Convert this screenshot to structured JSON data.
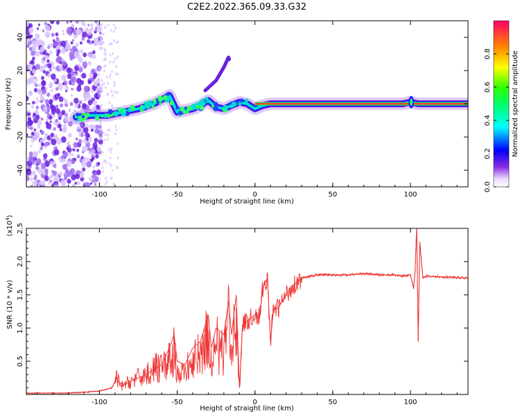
{
  "title": "C2E2.2022.365.09.33.G32",
  "chart_data": [
    {
      "type": "heatmap",
      "xlabel": "Height of straight line (km)",
      "ylabel": "Frequency (Hz)",
      "xlim": [
        -147,
        137
      ],
      "ylim": [
        -50,
        50
      ],
      "xticks": [
        -100,
        -50,
        0,
        50,
        100
      ],
      "yticks": [
        -40,
        -20,
        0,
        20,
        40
      ],
      "colorbar": {
        "label": "Normalized spectral amplitude",
        "range": [
          0,
          1
        ],
        "ticks": [
          "0.0",
          "0.2",
          "0.4",
          "0.6",
          "0.8"
        ]
      },
      "trace": {
        "x": [
          -115,
          -105,
          -95,
          -85,
          -75,
          -65,
          -55,
          -50,
          -45,
          -40,
          -35,
          -30,
          -25,
          -20,
          -15,
          -10,
          -5,
          0,
          5,
          10,
          20,
          50,
          90,
          95,
          100,
          105,
          110,
          137
        ],
        "y": [
          -8,
          -7,
          -7,
          -5,
          -3,
          0,
          5,
          -5,
          -4,
          -3,
          -1,
          2,
          -2,
          -3,
          -1,
          1,
          0,
          -3,
          -1,
          0,
          0,
          0,
          0,
          0,
          1,
          0,
          0,
          0
        ]
      },
      "grid": false
    },
    {
      "type": "line",
      "xlabel": "Height of straight line (km)",
      "ylabel": "SNR (10 * v/v)",
      "y_multiplier": "(x10^4)",
      "xlim": [
        -147,
        137
      ],
      "ylim": [
        0,
        2.5
      ],
      "xticks": [
        -100,
        -50,
        0,
        50,
        100
      ],
      "yticks": [
        "0.5",
        "1.0",
        "1.5",
        "2.0",
        "2.5"
      ],
      "color": "#ee3333",
      "series": [
        {
          "x": [
            -147,
            -120,
            -100,
            -92,
            -89,
            -86,
            -80,
            -70,
            -60,
            -55,
            -52,
            -50,
            -45,
            -40,
            -35,
            -30,
            -28,
            -25,
            -20,
            -17,
            -15,
            -12,
            -10,
            -8,
            -5,
            0,
            3,
            5,
            8,
            10,
            12,
            15,
            20,
            25,
            30,
            40,
            50,
            60,
            70,
            80,
            90,
            95,
            100,
            102,
            103,
            104,
            105,
            106,
            108,
            110,
            120,
            130,
            137
          ],
          "y": [
            0.02,
            0.02,
            0.05,
            0.1,
            0.25,
            0.12,
            0.2,
            0.3,
            0.45,
            0.7,
            0.9,
            0.5,
            0.45,
            0.7,
            0.8,
            1.2,
            0.7,
            1.0,
            0.9,
            1.4,
            0.9,
            1.5,
            0.1,
            1.05,
            1.1,
            1.2,
            1.15,
            1.6,
            1.75,
            0.8,
            1.3,
            1.3,
            1.5,
            1.65,
            1.75,
            1.8,
            1.8,
            1.8,
            1.82,
            1.8,
            1.8,
            1.78,
            1.8,
            1.6,
            1.85,
            2.55,
            0.8,
            2.3,
            1.75,
            1.78,
            1.77,
            1.76,
            1.75
          ]
        }
      ],
      "grid": false
    }
  ]
}
